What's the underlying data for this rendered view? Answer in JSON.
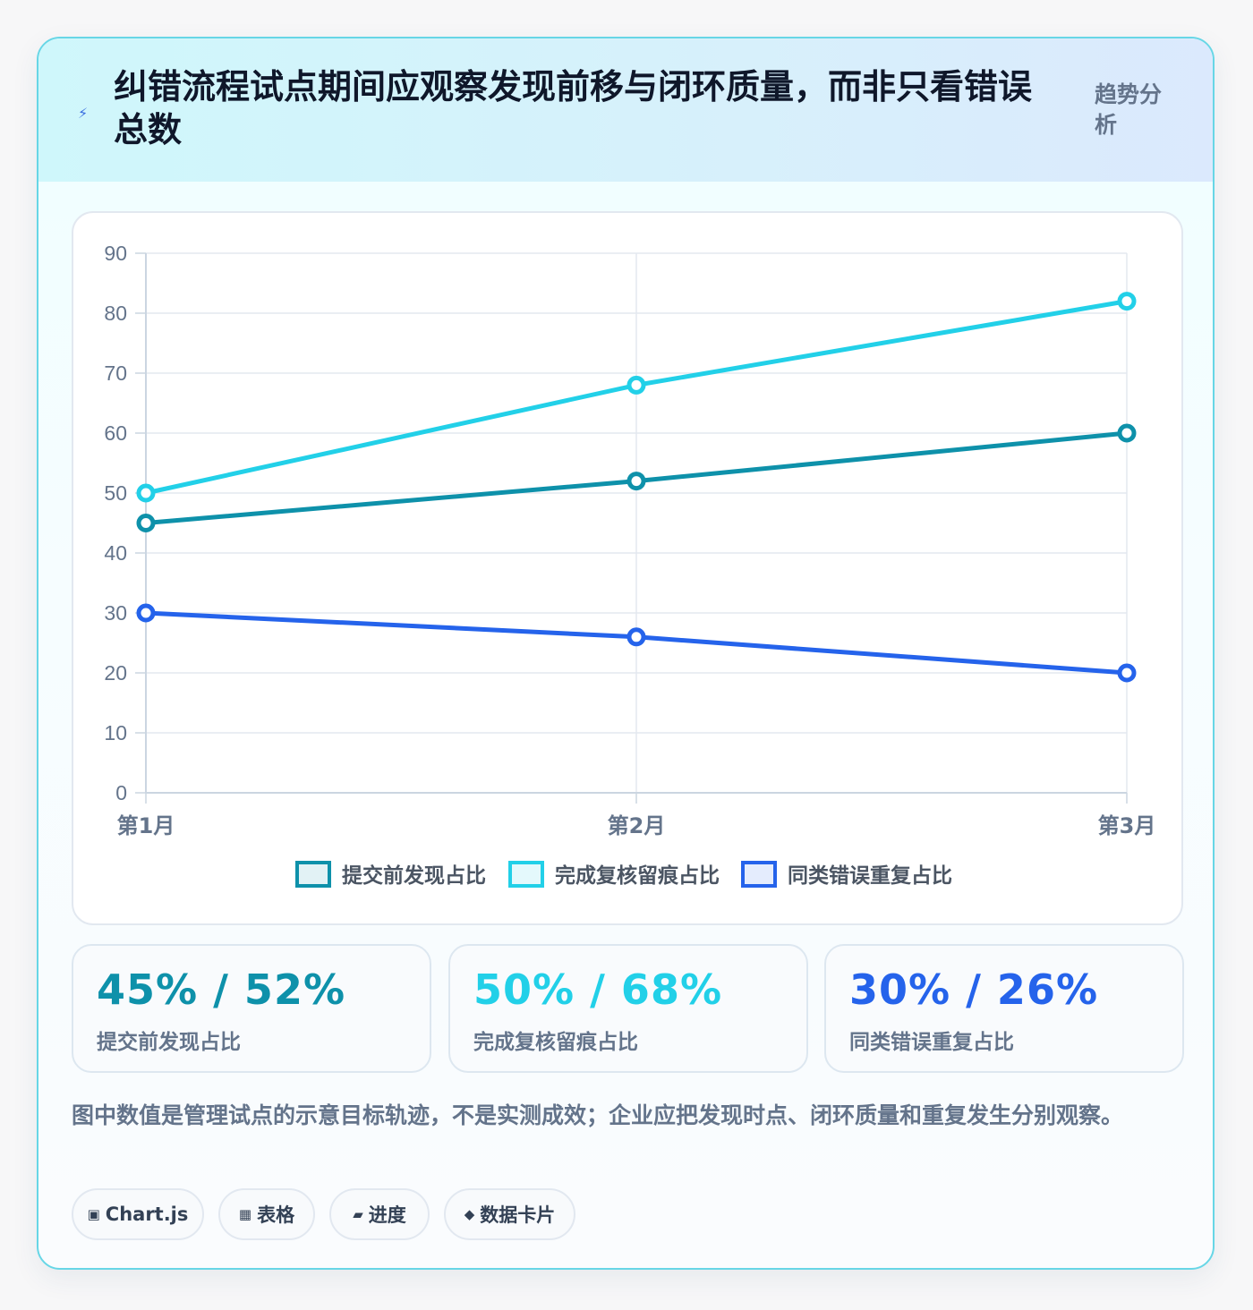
{
  "header": {
    "icon": "lightning-icon",
    "title": "纠错流程试点期间应观察发现前移与闭环质量，而非只看错误总数",
    "tag": "趋势分析"
  },
  "chart_data": {
    "type": "line",
    "categories": [
      "第1月",
      "第2月",
      "第3月"
    ],
    "series": [
      {
        "name": "提交前发现占比",
        "values": [
          45,
          52,
          60
        ],
        "color": "#0e91aa"
      },
      {
        "name": "完成复核留痕占比",
        "values": [
          50,
          68,
          82
        ],
        "color": "#22d0e8"
      },
      {
        "name": "同类错误重复占比",
        "values": [
          30,
          26,
          20
        ],
        "color": "#2563eb"
      }
    ],
    "ylim": [
      0,
      90
    ],
    "yticks": [
      0,
      10,
      20,
      30,
      40,
      50,
      60,
      70,
      80,
      90
    ],
    "grid": true,
    "legend_position": "bottom"
  },
  "stats": [
    {
      "value": "45% / 52%",
      "label": "提交前发现占比",
      "color": "#0e91aa"
    },
    {
      "value": "50% / 68%",
      "label": "完成复核留痕占比",
      "color": "#22d0e8"
    },
    {
      "value": "30% / 26%",
      "label": "同类错误重复占比",
      "color": "#2563eb"
    }
  ],
  "footnote": "图中数值是管理试点的示意目标轨迹，不是实测成效；企业应把发现时点、闭环质量和重复发生分别观察。",
  "pills": [
    {
      "icon": "▣",
      "label": "Chart.js"
    },
    {
      "icon": "▦",
      "label": "表格"
    },
    {
      "icon": "▰",
      "label": "进度"
    },
    {
      "icon": "◆",
      "label": "数据卡片"
    }
  ]
}
